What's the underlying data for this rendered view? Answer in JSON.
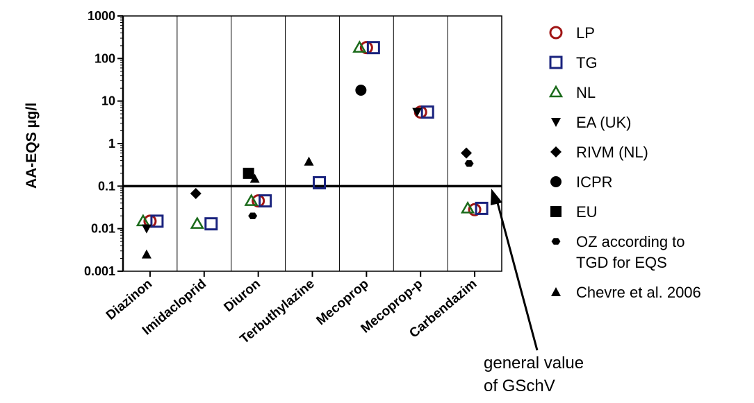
{
  "chart_data": {
    "type": "scatter",
    "ylabel": "AA-EQS µg/l",
    "yscale": "log",
    "ylim": [
      0.001,
      1000
    ],
    "yticks": [
      "0.001",
      "0.01",
      "0.1",
      "1",
      "10",
      "100",
      "1000"
    ],
    "categories": [
      "Diazinon",
      "Imidacloprid",
      "Diuron",
      "Terbuthylazine",
      "Mecoprop",
      "Mecoprop-p",
      "Carbendazim"
    ],
    "reference_line": {
      "value": 0.1,
      "label": "general value of GSchV"
    },
    "series": [
      {
        "name": "LP",
        "marker": "circle-open",
        "color": "#a01414",
        "points": [
          {
            "category": "Diazinon",
            "y": 0.015
          },
          {
            "category": "Diuron",
            "y": 0.045
          },
          {
            "category": "Mecoprop",
            "y": 180
          },
          {
            "category": "Mecoprop-p",
            "y": 5.5
          },
          {
            "category": "Carbendazim",
            "y": 0.028
          }
        ]
      },
      {
        "name": "TG",
        "marker": "square-open",
        "color": "#1a237e",
        "points": [
          {
            "category": "Diazinon",
            "y": 0.015
          },
          {
            "category": "Imidacloprid",
            "y": 0.013
          },
          {
            "category": "Diuron",
            "y": 0.045
          },
          {
            "category": "Terbuthylazine",
            "y": 0.12
          },
          {
            "category": "Mecoprop",
            "y": 180
          },
          {
            "category": "Mecoprop-p",
            "y": 5.5
          },
          {
            "category": "Carbendazim",
            "y": 0.03
          }
        ]
      },
      {
        "name": "NL",
        "marker": "triangle-open",
        "color": "#1b6b1b",
        "points": [
          {
            "category": "Diazinon",
            "y": 0.015
          },
          {
            "category": "Imidacloprid",
            "y": 0.013
          },
          {
            "category": "Diuron",
            "y": 0.045
          },
          {
            "category": "Mecoprop",
            "y": 180
          },
          {
            "category": "Carbendazim",
            "y": 0.03
          }
        ]
      },
      {
        "name": "EA (UK)",
        "marker": "triangle-down-filled",
        "color": "#000000",
        "points": [
          {
            "category": "Diazinon",
            "y": 0.01
          },
          {
            "category": "Mecoprop-p",
            "y": 5.5
          }
        ]
      },
      {
        "name": "RIVM (NL)",
        "marker": "diamond-filled",
        "color": "#000000",
        "points": [
          {
            "category": "Imidacloprid",
            "y": 0.067
          },
          {
            "category": "Carbendazim",
            "y": 0.6
          }
        ]
      },
      {
        "name": "ICPR",
        "marker": "circle-filled",
        "color": "#000000",
        "points": [
          {
            "category": "Mecoprop",
            "y": 18
          }
        ]
      },
      {
        "name": "EU",
        "marker": "square-filled",
        "color": "#000000",
        "points": [
          {
            "category": "Diuron",
            "y": 0.2
          }
        ]
      },
      {
        "name": "OZ according to TGD for EQS",
        "marker": "hexagon-filled",
        "color": "#000000",
        "points": [
          {
            "category": "Diuron",
            "y": 0.02
          },
          {
            "category": "Carbendazim",
            "y": 0.34
          }
        ]
      },
      {
        "name": "Chevre et al. 2006",
        "marker": "triangle-filled",
        "color": "#000000",
        "points": [
          {
            "category": "Diazinon",
            "y": 0.0025
          },
          {
            "category": "Diuron",
            "y": 0.15
          },
          {
            "category": "Terbuthylazine",
            "y": 0.38
          }
        ]
      }
    ],
    "legend_position": "right",
    "grid": "vertical separators between categories"
  },
  "legend_labels": [
    "LP",
    "TG",
    "NL",
    "EA (UK)",
    "RIVM (NL)",
    "ICPR",
    "EU",
    "OZ according to",
    "TGD for EQS",
    "Chevre et al. 2006"
  ],
  "annotation": {
    "line1": "general value",
    "line2": "of GSchV"
  }
}
